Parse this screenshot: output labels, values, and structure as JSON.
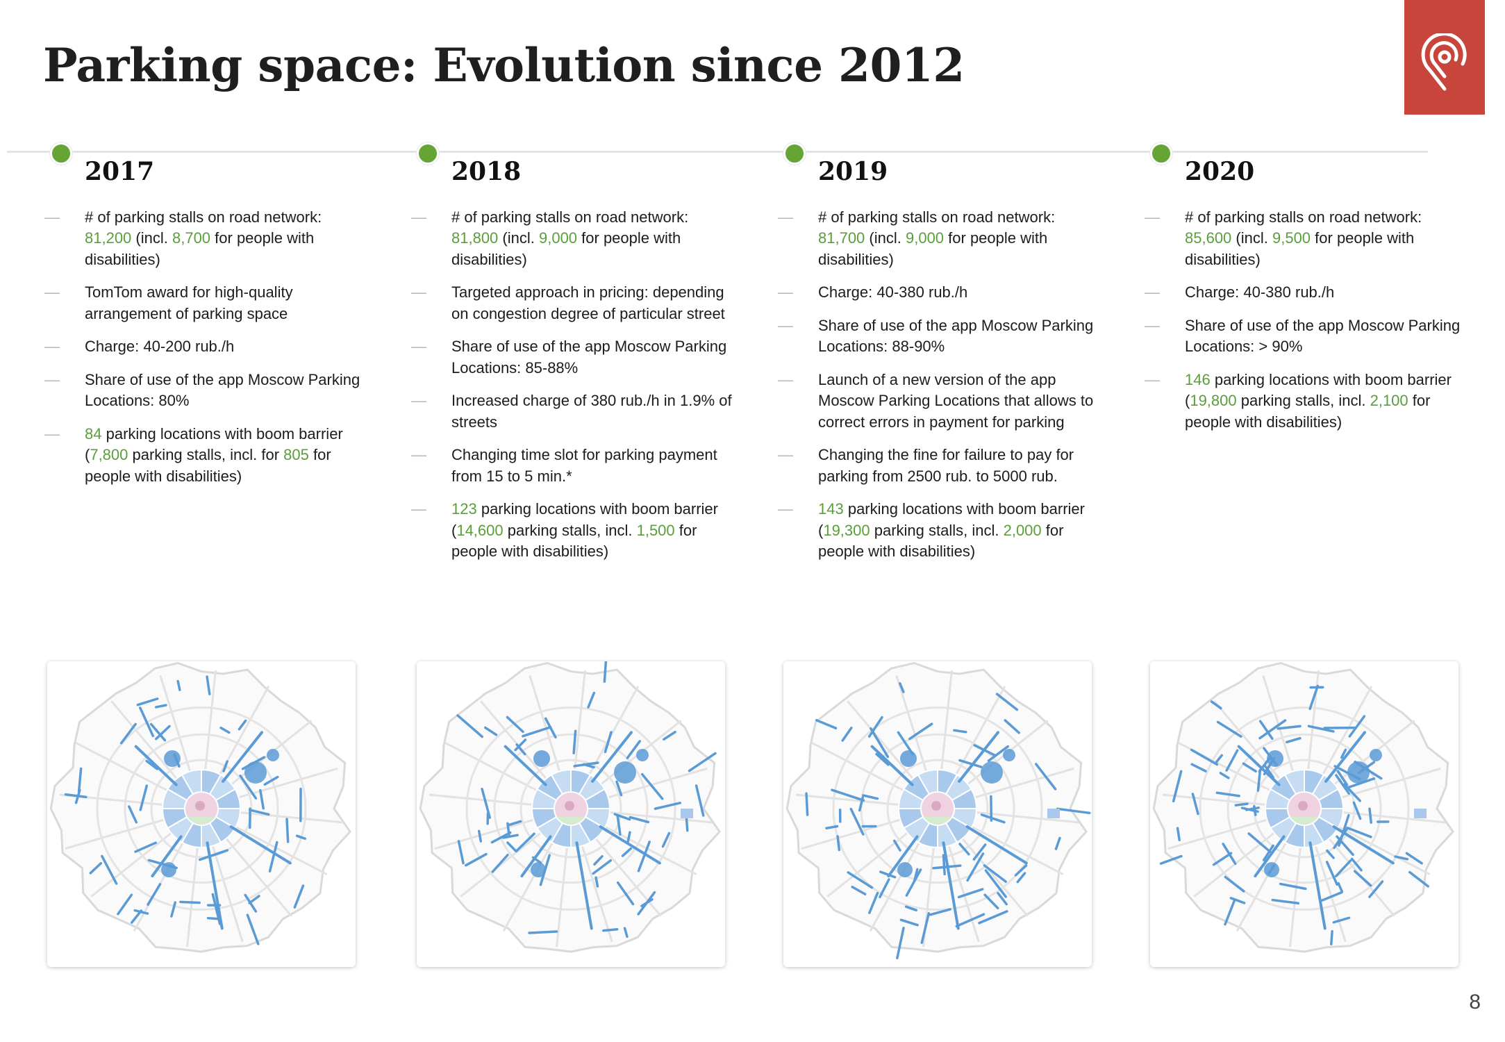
{
  "title": "Parking space: Evolution since 2012",
  "page_number": "8",
  "colors": {
    "accent_green": "#64a535",
    "value_green": "#5a9e3a",
    "logo_red": "#c8453b",
    "map_blue": "#5b9bd5"
  },
  "columns": [
    {
      "year": "2017",
      "items": [
        [
          {
            "t": "# of parking stalls on road network: "
          },
          {
            "g": "81,200"
          },
          {
            "t": " (incl. "
          },
          {
            "g": "8,700"
          },
          {
            "t": " for people with disabilities)"
          }
        ],
        [
          {
            "t": "TomTom award for high-quality arrangement of parking space"
          }
        ],
        [
          {
            "t": "Charge: 40-200 rub./h"
          }
        ],
        [
          {
            "t": "Share of use of the app Moscow Parking Locations: 80%"
          }
        ],
        [
          {
            "g": "84"
          },
          {
            "t": " parking locations with boom barrier ("
          },
          {
            "g": "7,800"
          },
          {
            "t": " parking stalls, incl. for "
          },
          {
            "g": "805"
          },
          {
            "t": " for people with disabilities)"
          }
        ]
      ]
    },
    {
      "year": "2018",
      "items": [
        [
          {
            "t": "# of parking stalls on road network: "
          },
          {
            "g": "81,800"
          },
          {
            "t": " (incl. "
          },
          {
            "g": "9,000"
          },
          {
            "t": " for people with disabilities)"
          }
        ],
        [
          {
            "t": "Targeted approach in pricing: depending on congestion degree of particular street"
          }
        ],
        [
          {
            "t": "Share of use of the app Moscow Parking Locations: 85-88%"
          }
        ],
        [
          {
            "t": "Increased charge of 380 rub./h in 1.9% of streets"
          }
        ],
        [
          {
            "t": "Changing time slot for parking payment from 15 to 5 min.*"
          }
        ],
        [
          {
            "g": "123"
          },
          {
            "t": " parking locations with boom barrier ("
          },
          {
            "g": "14,600"
          },
          {
            "t": " parking stalls, incl. "
          },
          {
            "g": "1,500"
          },
          {
            "t": " for people with disabilities)"
          }
        ]
      ]
    },
    {
      "year": "2019",
      "items": [
        [
          {
            "t": "# of parking stalls on road network: "
          },
          {
            "g": "81,700"
          },
          {
            "t": " (incl. "
          },
          {
            "g": "9,000"
          },
          {
            "t": " for people with disabilities)"
          }
        ],
        [
          {
            "t": "Charge: 40-380 rub./h"
          }
        ],
        [
          {
            "t": "Share of use of the app Moscow Parking Locations: 88-90%"
          }
        ],
        [
          {
            "t": "Launch of a new version of the app Moscow Parking Locations that allows to correct errors in payment for parking"
          }
        ],
        [
          {
            "t": "Changing the fine for failure to pay for parking from 2500 rub. to 5000 rub."
          }
        ],
        [
          {
            "g": "143"
          },
          {
            "t": " parking locations with boom barrier ("
          },
          {
            "g": "19,300"
          },
          {
            "t": " parking stalls, incl. "
          },
          {
            "g": "2,000"
          },
          {
            "t": " for people with disabilities)"
          }
        ]
      ]
    },
    {
      "year": "2020",
      "items": [
        [
          {
            "t": "# of parking stalls on road network: "
          },
          {
            "g": "85,600"
          },
          {
            "t": " (incl. "
          },
          {
            "g": "9,500"
          },
          {
            "t": " for people with disabilities)"
          }
        ],
        [
          {
            "t": "Charge: 40-380 rub./h"
          }
        ],
        [
          {
            "t": "Share of use of the app Moscow Parking Locations: > 90%"
          }
        ],
        [
          {
            "g": "146"
          },
          {
            "t": " parking locations with boom barrier ("
          },
          {
            "g": "19,800"
          },
          {
            "t": " parking stalls, incl. "
          },
          {
            "g": "2,100"
          },
          {
            "t": " for people with disabilities)"
          }
        ]
      ]
    }
  ],
  "icons": {
    "logo": "location-pin-logo-icon",
    "map": "moscow-parking-map"
  }
}
